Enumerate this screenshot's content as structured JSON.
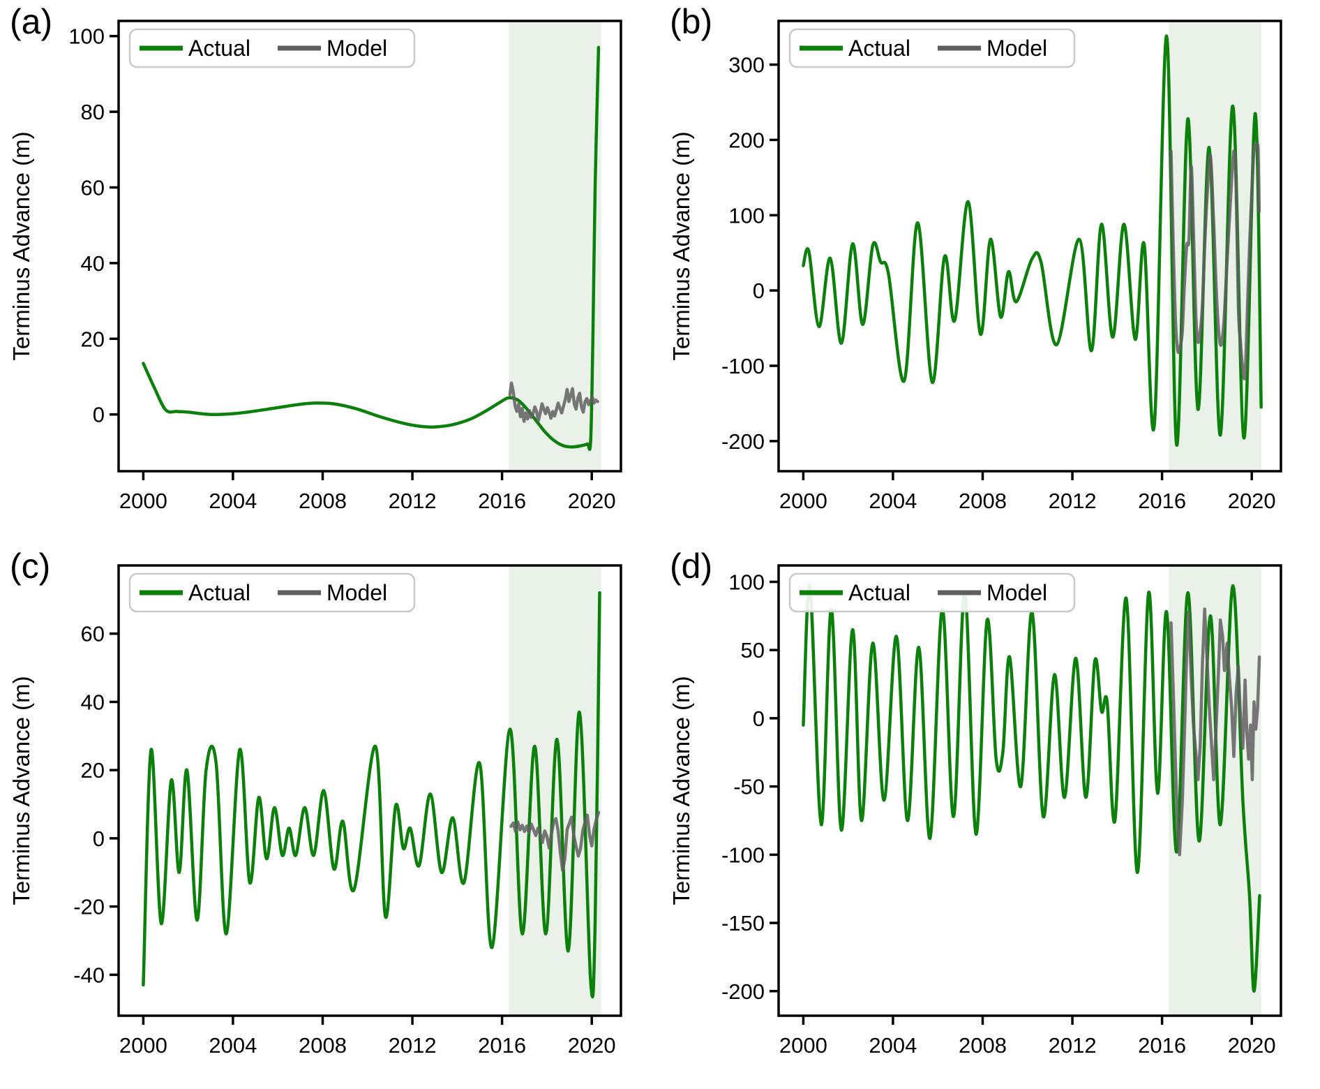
{
  "colors": {
    "actual": "#0b800b",
    "model": "#5f5f5f",
    "shaded_band": "#e9f1e8",
    "axis": "#000000",
    "legend_border": "#c9c9c9",
    "legend_background": "#ffffff",
    "background": "#ffffff",
    "text": "#000000"
  },
  "chart_data": [
    {
      "type": "line",
      "panel_label": "(a)",
      "ylabel": "Terminus Advance (m)",
      "xlabel": "",
      "xlim": [
        1998.9,
        2021.3
      ],
      "ylim": [
        -15,
        104
      ],
      "x_ticks": [
        2000,
        2004,
        2008,
        2012,
        2016,
        2020
      ],
      "y_ticks": [
        0,
        20,
        40,
        60,
        80,
        100
      ],
      "shaded_region": {
        "x_start": 2016.3,
        "x_end": 2020.42
      },
      "legend": {
        "position": "upper left",
        "entries": [
          "Actual",
          "Model"
        ]
      },
      "grid": false,
      "series": [
        {
          "name": "Actual",
          "color": "#0b800b",
          "smooth": true,
          "x": [
            2000.0,
            2000.5,
            2001.0,
            2001.5,
            2002.0,
            2003.0,
            2004.0,
            2005.0,
            2006.0,
            2007.0,
            2007.7,
            2008.5,
            2009.5,
            2010.5,
            2011.5,
            2012.3,
            2013.0,
            2013.8,
            2014.6,
            2015.3,
            2015.9,
            2016.3,
            2016.7,
            2017.1,
            2017.5,
            2017.9,
            2018.3,
            2018.7,
            2019.1,
            2019.5,
            2019.8,
            2019.95,
            2020.05,
            2020.15,
            2020.3
          ],
          "y": [
            13.5,
            7.0,
            1.2,
            0.8,
            0.6,
            0.0,
            0.2,
            0.9,
            1.8,
            2.7,
            3.0,
            2.8,
            1.5,
            -0.5,
            -2.2,
            -3.1,
            -3.3,
            -2.7,
            -1.2,
            1.0,
            3.2,
            4.4,
            3.8,
            1.5,
            -1.5,
            -4.5,
            -6.8,
            -8.2,
            -8.6,
            -8.3,
            -7.8,
            -7.0,
            20.0,
            60.0,
            97.0
          ]
        },
        {
          "name": "Model",
          "color": "#5f5f5f",
          "smooth": false,
          "x": [
            2016.35,
            2016.42,
            2016.5,
            2016.58,
            2016.66,
            2016.74,
            2016.82,
            2016.9,
            2016.98,
            2017.06,
            2017.14,
            2017.22,
            2017.3,
            2017.38,
            2017.46,
            2017.54,
            2017.62,
            2017.7,
            2017.78,
            2017.86,
            2017.94,
            2018.02,
            2018.1,
            2018.18,
            2018.26,
            2018.34,
            2018.42,
            2018.5,
            2018.58,
            2018.66,
            2018.74,
            2018.82,
            2018.9,
            2018.98,
            2019.06,
            2019.14,
            2019.22,
            2019.3,
            2019.38,
            2019.46,
            2019.54,
            2019.62,
            2019.7,
            2019.78,
            2019.86,
            2019.94,
            2020.02,
            2020.1,
            2020.18,
            2020.26
          ],
          "y": [
            5.2,
            8.3,
            6.0,
            2.2,
            0.8,
            2.8,
            -0.6,
            1.6,
            -1.8,
            0.4,
            -1.2,
            1.0,
            -0.8,
            0.2,
            2.0,
            0.8,
            -1.6,
            0.4,
            2.8,
            1.4,
            0.2,
            1.8,
            0.6,
            -1.0,
            0.8,
            -0.4,
            1.2,
            3.0,
            1.6,
            0.4,
            2.2,
            4.0,
            6.6,
            3.4,
            5.0,
            6.8,
            2.8,
            1.4,
            4.4,
            5.6,
            2.0,
            0.6,
            3.4,
            4.2,
            2.6,
            3.6,
            4.6,
            3.0,
            3.8,
            3.4
          ]
        }
      ]
    },
    {
      "type": "line",
      "panel_label": "(b)",
      "ylabel": "Terminus Advance (m)",
      "xlabel": "",
      "xlim": [
        1998.9,
        2021.3
      ],
      "ylim": [
        -240,
        358
      ],
      "x_ticks": [
        2000,
        2004,
        2008,
        2012,
        2016,
        2020
      ],
      "y_ticks": [
        -200,
        -100,
        0,
        100,
        200,
        300
      ],
      "shaded_region": {
        "x_start": 2016.3,
        "x_end": 2020.42
      },
      "legend": {
        "position": "upper left",
        "entries": [
          "Actual",
          "Model"
        ]
      },
      "grid": false,
      "series": [
        {
          "name": "Actual",
          "color": "#0b800b",
          "smooth": true,
          "x": [
            2000.0,
            2000.25,
            2000.7,
            2001.2,
            2001.7,
            2002.2,
            2002.65,
            2003.1,
            2003.45,
            2003.8,
            2004.5,
            2005.1,
            2005.75,
            2006.3,
            2006.75,
            2007.35,
            2007.9,
            2008.35,
            2008.8,
            2009.15,
            2009.5,
            2010.2,
            2010.6,
            2011.3,
            2012.3,
            2012.85,
            2013.3,
            2013.8,
            2014.3,
            2014.8,
            2015.2,
            2015.65,
            2016.2,
            2016.65,
            2017.15,
            2017.6,
            2018.1,
            2018.6,
            2019.15,
            2019.65,
            2020.15,
            2020.42
          ],
          "y": [
            33,
            52,
            -48,
            43,
            -70,
            62,
            -45,
            60,
            38,
            22,
            -120,
            90,
            -122,
            45,
            -40,
            118,
            -58,
            68,
            -35,
            25,
            -15,
            42,
            38,
            -72,
            68,
            -80,
            88,
            -62,
            88,
            -65,
            62,
            -180,
            338,
            -205,
            228,
            -158,
            190,
            -192,
            245,
            -196,
            235,
            -155
          ]
        },
        {
          "name": "Model",
          "color": "#5f5f5f",
          "smooth": true,
          "x": [
            2016.4,
            2016.5,
            2016.6,
            2016.7,
            2016.8,
            2016.9,
            2017.0,
            2017.1,
            2017.2,
            2017.3,
            2017.4,
            2017.5,
            2017.6,
            2017.7,
            2017.8,
            2017.9,
            2018.0,
            2018.15,
            2018.3,
            2018.45,
            2018.6,
            2018.75,
            2018.9,
            2019.05,
            2019.2,
            2019.3,
            2019.4,
            2019.5,
            2019.6,
            2019.7,
            2019.8,
            2019.9,
            2020.0,
            2020.1,
            2020.2,
            2020.28,
            2020.33
          ],
          "y": [
            185,
            60,
            -40,
            -80,
            -75,
            -55,
            10,
            60,
            68,
            165,
            80,
            -30,
            -68,
            -55,
            -20,
            60,
            120,
            180,
            90,
            -20,
            -72,
            -45,
            40,
            120,
            185,
            140,
            -20,
            -70,
            -105,
            -112,
            -30,
            60,
            130,
            188,
            190,
            188,
            105
          ]
        }
      ]
    },
    {
      "type": "line",
      "panel_label": "(c)",
      "ylabel": "Terminus Advance (m)",
      "xlabel": "",
      "xlim": [
        1998.9,
        2021.3
      ],
      "ylim": [
        -52,
        80
      ],
      "x_ticks": [
        2000,
        2004,
        2008,
        2012,
        2016,
        2020
      ],
      "y_ticks": [
        -40,
        -20,
        0,
        20,
        40,
        60
      ],
      "shaded_region": {
        "x_start": 2016.3,
        "x_end": 2020.42
      },
      "legend": {
        "position": "upper left",
        "entries": [
          "Actual",
          "Model"
        ]
      },
      "grid": false,
      "series": [
        {
          "name": "Actual",
          "color": "#0b800b",
          "smooth": true,
          "x": [
            2000.0,
            2000.35,
            2000.8,
            2001.25,
            2001.6,
            2001.95,
            2002.4,
            2002.8,
            2003.25,
            2003.7,
            2004.3,
            2004.75,
            2005.15,
            2005.5,
            2005.85,
            2006.2,
            2006.5,
            2006.8,
            2007.2,
            2007.6,
            2008.05,
            2008.5,
            2008.9,
            2009.4,
            2010.35,
            2010.8,
            2011.25,
            2011.6,
            2011.9,
            2012.3,
            2012.8,
            2013.3,
            2013.8,
            2014.3,
            2015.0,
            2015.55,
            2016.35,
            2016.9,
            2017.45,
            2017.95,
            2018.45,
            2018.95,
            2019.45,
            2019.95,
            2020.15,
            2020.35
          ],
          "y": [
            -43,
            26,
            -25,
            17,
            -10,
            20,
            -24,
            20,
            22,
            -28,
            26,
            -13,
            12,
            -6,
            9,
            -5,
            3,
            -5,
            9,
            -5,
            14,
            -9,
            5,
            -15,
            27,
            -23,
            9.5,
            -3,
            3,
            -8,
            13,
            -10,
            6,
            -13,
            22,
            -32,
            32,
            -28,
            27,
            -28,
            29,
            -33,
            37,
            -42,
            -25,
            72
          ]
        },
        {
          "name": "Model",
          "color": "#5f5f5f",
          "smooth": false,
          "x": [
            2016.4,
            2016.5,
            2016.6,
            2016.7,
            2016.8,
            2016.9,
            2017.0,
            2017.1,
            2017.2,
            2017.3,
            2017.4,
            2017.5,
            2017.6,
            2017.7,
            2017.8,
            2017.9,
            2018.0,
            2018.1,
            2018.2,
            2018.3,
            2018.4,
            2018.5,
            2018.6,
            2018.7,
            2018.8,
            2018.9,
            2019.0,
            2019.1,
            2019.2,
            2019.3,
            2019.4,
            2019.5,
            2019.6,
            2019.7,
            2019.8,
            2019.9,
            2020.0,
            2020.1,
            2020.2,
            2020.3
          ],
          "y": [
            3.5,
            4.5,
            2.0,
            4.8,
            2.5,
            3.8,
            2.0,
            3.6,
            1.6,
            4.2,
            2.6,
            0.8,
            3.0,
            1.2,
            -1.2,
            2.2,
            0.6,
            -2.8,
            1.4,
            4.6,
            5.8,
            2.2,
            -4.2,
            -9.4,
            -6.0,
            2.6,
            4.4,
            6.2,
            0.8,
            -2.4,
            -5.2,
            -3.0,
            2.4,
            4.6,
            6.8,
            1.0,
            -2.2,
            2.6,
            5.4,
            7.6
          ]
        }
      ]
    },
    {
      "type": "line",
      "panel_label": "(d)",
      "ylabel": "Terminus Advance (m)",
      "xlabel": "",
      "xlim": [
        1998.9,
        2021.3
      ],
      "ylim": [
        -218,
        112
      ],
      "x_ticks": [
        2000,
        2004,
        2008,
        2012,
        2016,
        2020
      ],
      "y_ticks": [
        -200,
        -150,
        -100,
        -50,
        0,
        50,
        100
      ],
      "shaded_region": {
        "x_start": 2016.3,
        "x_end": 2020.42
      },
      "legend": {
        "position": "upper left",
        "entries": [
          "Actual",
          "Model"
        ]
      },
      "grid": false,
      "series": [
        {
          "name": "Actual",
          "color": "#0b800b",
          "smooth": true,
          "x": [
            2000.0,
            2000.3,
            2000.8,
            2001.25,
            2001.7,
            2002.2,
            2002.6,
            2003.1,
            2003.6,
            2004.15,
            2004.65,
            2005.15,
            2005.65,
            2006.2,
            2006.7,
            2007.2,
            2007.7,
            2008.2,
            2008.6,
            2008.9,
            2009.2,
            2009.7,
            2010.2,
            2010.7,
            2011.2,
            2011.65,
            2012.15,
            2012.6,
            2013.0,
            2013.3,
            2013.55,
            2013.9,
            2014.4,
            2014.9,
            2015.4,
            2015.8,
            2016.2,
            2016.65,
            2017.15,
            2017.65,
            2018.15,
            2018.6,
            2019.15,
            2019.6,
            2019.9,
            2020.1,
            2020.35
          ],
          "y": [
            -5,
            97,
            -78,
            80,
            -82,
            65,
            -75,
            55,
            -60,
            60,
            -75,
            52,
            -88,
            80,
            -72,
            92,
            -85,
            72,
            -30,
            -25,
            45,
            -50,
            78,
            -72,
            32,
            -58,
            44,
            -58,
            42,
            5,
            12,
            -75,
            88,
            -113,
            92,
            -55,
            78,
            -98,
            92,
            -90,
            75,
            -78,
            97,
            -60,
            -130,
            -200,
            -130
          ]
        },
        {
          "name": "Model",
          "color": "#5f5f5f",
          "smooth": false,
          "x": [
            2016.4,
            2016.5,
            2016.6,
            2016.7,
            2016.78,
            2016.9,
            2017.0,
            2017.1,
            2017.18,
            2017.3,
            2017.4,
            2017.5,
            2017.6,
            2017.7,
            2017.8,
            2017.9,
            2018.0,
            2018.1,
            2018.2,
            2018.3,
            2018.4,
            2018.5,
            2018.6,
            2018.7,
            2018.78,
            2018.9,
            2019.0,
            2019.1,
            2019.2,
            2019.3,
            2019.4,
            2019.5,
            2019.6,
            2019.7,
            2019.78,
            2019.86,
            2019.94,
            2020.02,
            2020.1,
            2020.18,
            2020.26,
            2020.34
          ],
          "y": [
            70,
            20,
            -35,
            -85,
            -100,
            -62,
            -10,
            50,
            78,
            30,
            -5,
            -25,
            -45,
            -20,
            40,
            80,
            45,
            10,
            -18,
            -45,
            -10,
            28,
            72,
            60,
            35,
            55,
            30,
            8,
            -28,
            18,
            38,
            0,
            -22,
            28,
            -10,
            -30,
            -5,
            -45,
            12,
            -8,
            8,
            45
          ]
        }
      ]
    }
  ]
}
